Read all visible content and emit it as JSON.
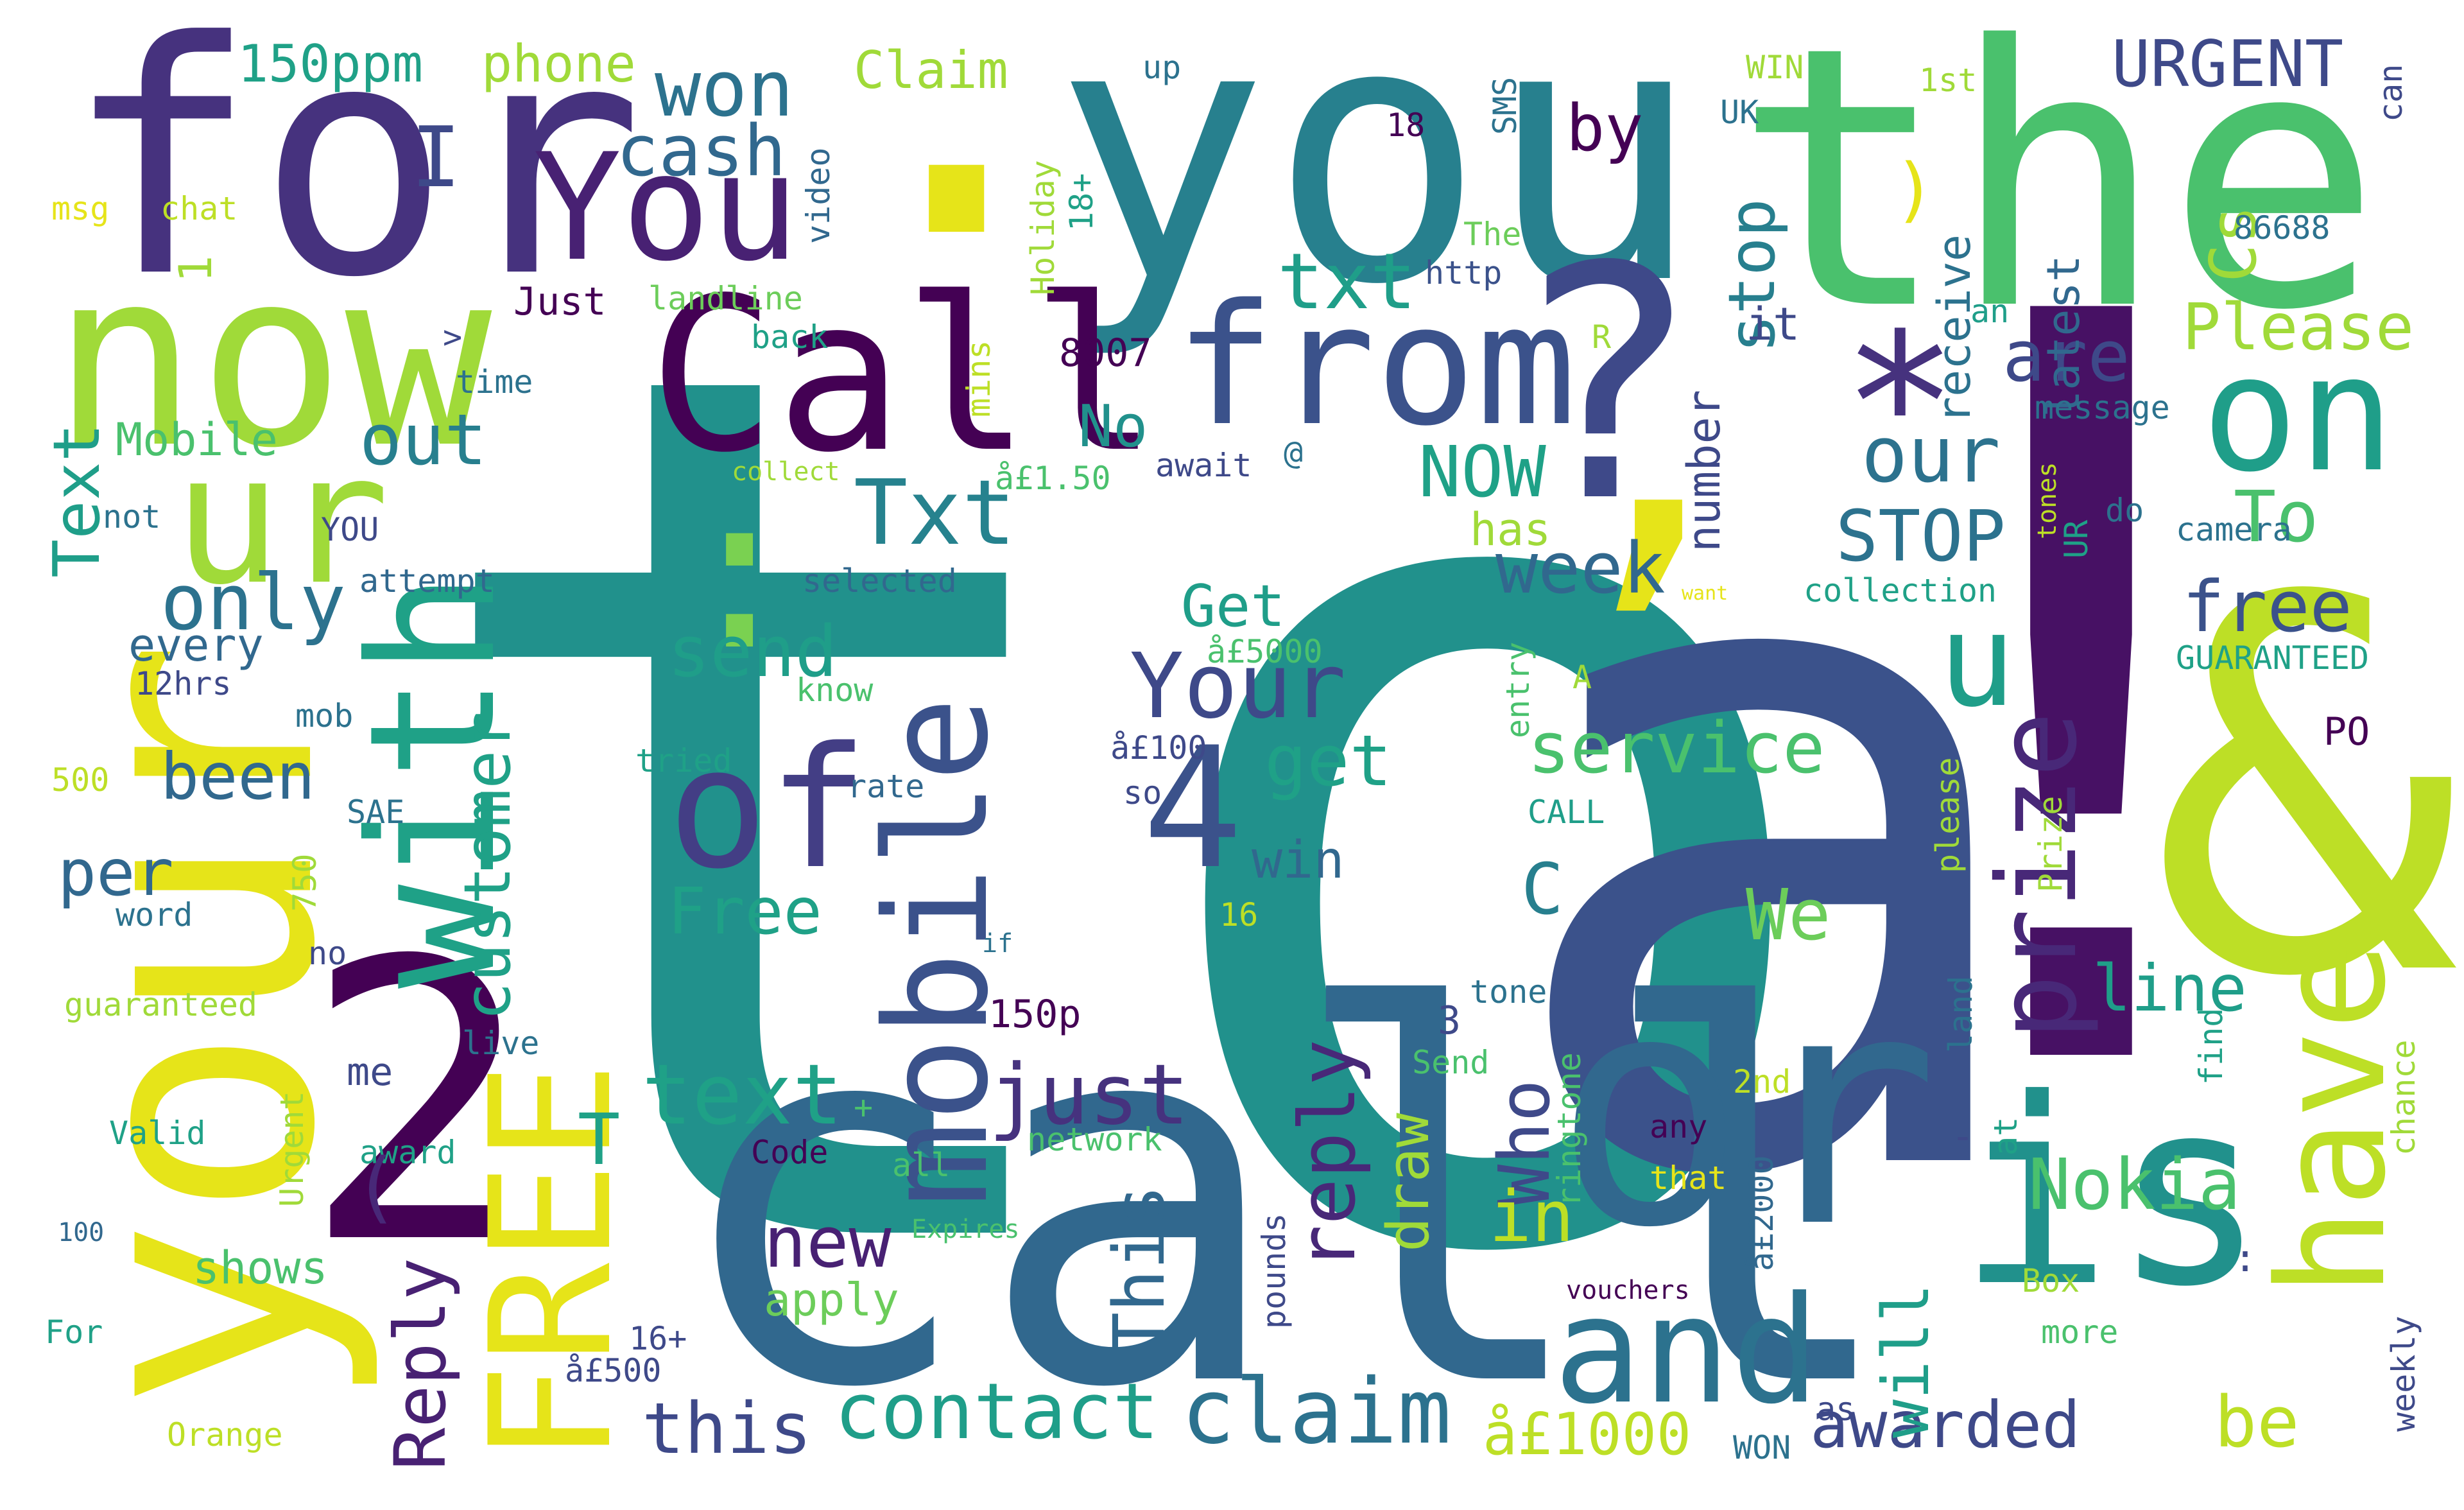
{
  "colors": {
    "background": "#ffffff",
    "palette": [
      "#440154",
      "#46327e",
      "#365c8d",
      "#277f8e",
      "#1fa187",
      "#4ac16d",
      "#a0da39",
      "#e6e419"
    ]
  },
  "words": [
    {
      "id": "to",
      "text": "to"
    },
    {
      "id": "a",
      "text": "a"
    },
    {
      "id": "call",
      "text": "call"
    },
    {
      "id": "exclam",
      "text": "!"
    },
    {
      "id": "amp",
      "text": "&"
    },
    {
      "id": "you",
      "text": "you"
    },
    {
      "id": "the",
      "text": "the"
    },
    {
      "id": "for",
      "text": "for"
    },
    {
      "id": "your",
      "text": "your"
    },
    {
      "id": "now",
      "text": "now"
    },
    {
      "id": "or",
      "text": "or"
    },
    {
      "id": "is",
      "text": "is"
    },
    {
      "id": "two",
      "text": "2"
    },
    {
      "id": "comma",
      "text": ","
    },
    {
      "id": "question",
      "text": "?"
    },
    {
      "id": "dot",
      "text": "."
    },
    {
      "id": "colon",
      "text": ":"
    },
    {
      "id": "star",
      "text": "*"
    },
    {
      "id": "Call",
      "text": "Call"
    },
    {
      "id": "from",
      "text": "from"
    },
    {
      "id": "of",
      "text": "of"
    },
    {
      "id": "ur",
      "text": "ur"
    },
    {
      "id": "with",
      "text": "with"
    },
    {
      "id": "mobile",
      "text": "mobile"
    },
    {
      "id": "FREE",
      "text": "FREE"
    },
    {
      "id": "and",
      "text": "and"
    },
    {
      "id": "have",
      "text": "have"
    },
    {
      "id": "on",
      "text": "on"
    },
    {
      "id": "You",
      "text": "You"
    },
    {
      "id": "four",
      "text": "4"
    },
    {
      "id": "Your",
      "text": "Your"
    },
    {
      "id": "u",
      "text": "u"
    },
    {
      "id": "prize",
      "text": "prize"
    },
    {
      "id": "Txt",
      "text": "Txt"
    },
    {
      "id": "txt",
      "text": "txt"
    },
    {
      "id": "cash",
      "text": "cash"
    },
    {
      "id": "won",
      "text": "won"
    },
    {
      "id": "I",
      "text": "I"
    },
    {
      "id": "only",
      "text": "only"
    },
    {
      "id": "out",
      "text": "out"
    },
    {
      "id": "send",
      "text": "send"
    },
    {
      "id": "text",
      "text": "text"
    },
    {
      "id": "just",
      "text": "just"
    },
    {
      "id": "claim",
      "text": "claim"
    },
    {
      "id": "contact",
      "text": "contact"
    },
    {
      "id": "this",
      "text": "this"
    },
    {
      "id": "awarded",
      "text": "awarded"
    },
    {
      "id": "Nokia",
      "text": "Nokia"
    },
    {
      "id": "service",
      "text": "service"
    },
    {
      "id": "week",
      "text": "week"
    },
    {
      "id": "STOP",
      "text": "STOP"
    },
    {
      "id": "our",
      "text": "our"
    },
    {
      "id": "are",
      "text": "are"
    },
    {
      "id": "URGENT",
      "text": "URGENT"
    },
    {
      "id": "Please",
      "text": "Please"
    },
    {
      "id": "free",
      "text": "free"
    },
    {
      "id": "To",
      "text": "To"
    },
    {
      "id": "Cs",
      "text": "Cs"
    },
    {
      "id": "stop",
      "text": "stop"
    },
    {
      "id": "by",
      "text": "by"
    },
    {
      "id": "Claim",
      "text": "Claim"
    },
    {
      "id": "phone",
      "text": "phone"
    },
    {
      "id": "ppm150",
      "text": "150ppm"
    },
    {
      "id": "Free",
      "text": "Free"
    },
    {
      "id": "Get",
      "text": "Get"
    },
    {
      "id": "get",
      "text": "get"
    },
    {
      "id": "win",
      "text": "win"
    },
    {
      "id": "No",
      "text": "No"
    },
    {
      "id": "NOW",
      "text": "NOW"
    },
    {
      "id": "been",
      "text": "been"
    },
    {
      "id": "per",
      "text": "per"
    },
    {
      "id": "customer",
      "text": "customer"
    },
    {
      "id": "Reply",
      "text": "Reply"
    },
    {
      "id": "reply",
      "text": "reply"
    },
    {
      "id": "new",
      "text": "new"
    },
    {
      "id": "This",
      "text": "This"
    },
    {
      "id": "Who",
      "text": "Who"
    },
    {
      "id": "in",
      "text": "in"
    },
    {
      "id": "draw",
      "text": "draw"
    },
    {
      "id": "will",
      "text": "will"
    },
    {
      "id": "be",
      "text": "be"
    },
    {
      "id": "line",
      "text": "line"
    },
    {
      "id": "We",
      "text": "We"
    },
    {
      "id": "C",
      "text": "C"
    },
    {
      "id": "T",
      "text": "T"
    },
    {
      "id": "Text",
      "text": "Text"
    },
    {
      "id": "Mobile",
      "text": "Mobile"
    },
    {
      "id": "every",
      "text": "every"
    },
    {
      "id": "shows",
      "text": "shows"
    },
    {
      "id": "apply",
      "text": "apply"
    },
    {
      "id": "pound1000",
      "text": "å£1000"
    },
    {
      "id": "number",
      "text": "number"
    },
    {
      "id": "has",
      "text": "has"
    },
    {
      "id": "receive",
      "text": "receive"
    },
    {
      "id": "latest",
      "text": "latest"
    },
    {
      "id": "it",
      "text": "it"
    },
    {
      "id": "Just",
      "text": "Just"
    },
    {
      "id": "landline",
      "text": "landline"
    },
    {
      "id": "chat",
      "text": "chat"
    },
    {
      "id": "msg",
      "text": "msg"
    },
    {
      "id": "one",
      "text": "1"
    },
    {
      "id": "time",
      "text": "time"
    },
    {
      "id": "gt",
      "text": ">"
    },
    {
      "id": "back",
      "text": "back"
    },
    {
      "id": "http",
      "text": "http"
    },
    {
      "id": "The",
      "text": "The"
    },
    {
      "id": "n8007",
      "text": "8007"
    },
    {
      "id": "mins",
      "text": "mins"
    },
    {
      "id": "R",
      "text": "R"
    },
    {
      "id": "message",
      "text": "message"
    },
    {
      "id": "an",
      "text": "an"
    },
    {
      "id": "n86688",
      "text": "86688"
    },
    {
      "id": "can",
      "text": "can"
    },
    {
      "id": "first",
      "text": "1st"
    },
    {
      "id": "WIN",
      "text": "WIN"
    },
    {
      "id": "UK",
      "text": "UK"
    },
    {
      "id": "up",
      "text": "up"
    },
    {
      "id": "SMS",
      "text": "SMS"
    },
    {
      "id": "n18",
      "text": "18"
    },
    {
      "id": "video",
      "text": "video"
    },
    {
      "id": "Holiday",
      "text": "Holiday"
    },
    {
      "id": "p18",
      "text": "18+"
    },
    {
      "id": "paren",
      "text": ")"
    },
    {
      "id": "collect",
      "text": "collect"
    },
    {
      "id": "not",
      "text": "not"
    },
    {
      "id": "YOU",
      "text": "YOU"
    },
    {
      "id": "attempt",
      "text": "attempt"
    },
    {
      "id": "twelvehrs",
      "text": "12hrs"
    },
    {
      "id": "mob",
      "text": "mob"
    },
    {
      "id": "n500",
      "text": "500"
    },
    {
      "id": "SAE",
      "text": "SAE"
    },
    {
      "id": "n750",
      "text": "750"
    },
    {
      "id": "word",
      "text": "word"
    },
    {
      "id": "no",
      "text": "no"
    },
    {
      "id": "guaranteed",
      "text": "guaranteed"
    },
    {
      "id": "Valid",
      "text": "Valid"
    },
    {
      "id": "Urgent",
      "text": "Urgent"
    },
    {
      "id": "n100",
      "text": "100"
    },
    {
      "id": "For",
      "text": "For"
    },
    {
      "id": "Orange",
      "text": "Orange"
    },
    {
      "id": "pound500",
      "text": "å£500"
    },
    {
      "id": "p16",
      "text": "16+"
    },
    {
      "id": "pound150",
      "text": "å£1.50"
    },
    {
      "id": "await",
      "text": "await"
    },
    {
      "id": "at_sign",
      "text": "@"
    },
    {
      "id": "selected",
      "text": "selected"
    },
    {
      "id": "know",
      "text": "know"
    },
    {
      "id": "tried",
      "text": "tried"
    },
    {
      "id": "rate",
      "text": "rate"
    },
    {
      "id": "so",
      "text": "so"
    },
    {
      "id": "pound5000",
      "text": "å£5000"
    },
    {
      "id": "pound100",
      "text": "å£100"
    },
    {
      "id": "n16",
      "text": "16"
    },
    {
      "id": "if",
      "text": "if"
    },
    {
      "id": "p150",
      "text": "150p"
    },
    {
      "id": "three",
      "text": "3"
    },
    {
      "id": "me",
      "text": "me"
    },
    {
      "id": "live",
      "text": "live"
    },
    {
      "id": "award",
      "text": "award"
    },
    {
      "id": "Code",
      "text": "Code"
    },
    {
      "id": "plus",
      "text": "+"
    },
    {
      "id": "network",
      "text": "network"
    },
    {
      "id": "all",
      "text": "all"
    },
    {
      "id": "Expires",
      "text": "Expires"
    },
    {
      "id": "Send",
      "text": "Send"
    },
    {
      "id": "tone",
      "text": "tone"
    },
    {
      "id": "ringtone",
      "text": "ringtone"
    },
    {
      "id": "second",
      "text": "2nd"
    },
    {
      "id": "pound2000",
      "text": "å£2000"
    },
    {
      "id": "any",
      "text": "any"
    },
    {
      "id": "that",
      "text": "that"
    },
    {
      "id": "pounds",
      "text": "pounds"
    },
    {
      "id": "vouchers",
      "text": "vouchers"
    },
    {
      "id": "as",
      "text": "as"
    },
    {
      "id": "WON",
      "text": "WON"
    },
    {
      "id": "CALL",
      "text": "CALL"
    },
    {
      "id": "A",
      "text": "A"
    },
    {
      "id": "entry",
      "text": "entry"
    },
    {
      "id": "collection",
      "text": "collection"
    },
    {
      "id": "want",
      "text": "want"
    },
    {
      "id": "GUARANTEED",
      "text": "GUARANTEED"
    },
    {
      "id": "camera",
      "text": "camera"
    },
    {
      "id": "do",
      "text": "do"
    },
    {
      "id": "UR",
      "text": "UR"
    },
    {
      "id": "tones",
      "text": "tones"
    },
    {
      "id": "PO",
      "text": "PO"
    },
    {
      "id": "please",
      "text": "please"
    },
    {
      "id": "Prize",
      "text": "Prize"
    },
    {
      "id": "land",
      "text": "land"
    },
    {
      "id": "find",
      "text": "find"
    },
    {
      "id": "chance",
      "text": "chance"
    },
    {
      "id": "at",
      "text": "at"
    },
    {
      "id": "Box",
      "text": "Box"
    },
    {
      "id": "more",
      "text": "more"
    },
    {
      "id": "weekly",
      "text": "weekly"
    },
    {
      "id": "colon2",
      "text": ":"
    },
    {
      "id": "lparen",
      "text": "("
    },
    {
      "id": "dash",
      "text": "-"
    }
  ]
}
